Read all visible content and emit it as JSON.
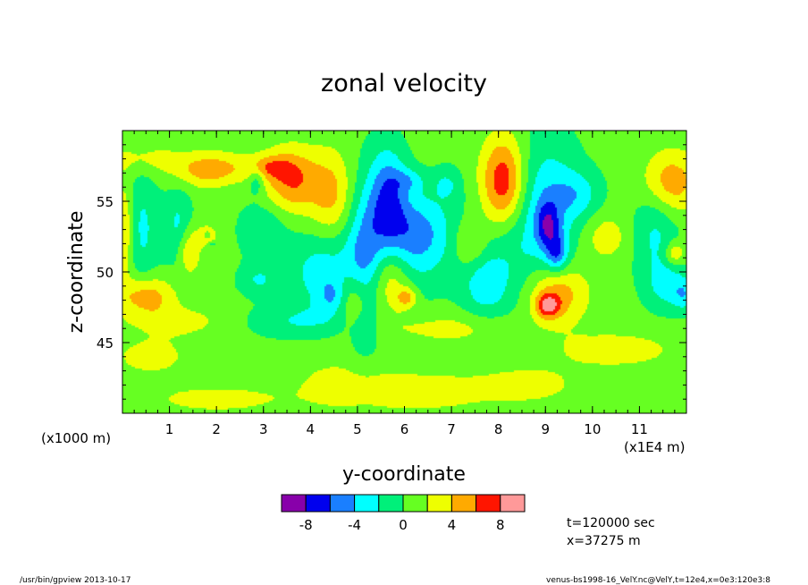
{
  "chart_data": {
    "type": "heatmap",
    "title": "zonal velocity",
    "xlabel": "y-coordinate",
    "ylabel": "z-coordinate",
    "x_ticks": [
      "1",
      "2",
      "3",
      "4",
      "5",
      "6",
      "7",
      "8",
      "9",
      "10",
      "11"
    ],
    "x_tick_values": [
      1,
      2,
      3,
      4,
      5,
      6,
      7,
      8,
      9,
      10,
      11
    ],
    "xlim": [
      0,
      12
    ],
    "x_unit_left": "(x1000 m)",
    "x_unit_right": "(x1E4 m)",
    "y_ticks": [
      "45",
      "50",
      "55"
    ],
    "y_tick_values": [
      45,
      50,
      55
    ],
    "ylim": [
      40,
      60
    ],
    "colorbar": {
      "tick_labels": [
        "-8",
        "-4",
        "0",
        "4",
        "8"
      ],
      "tick_values": [
        -8,
        -4,
        0,
        4,
        8
      ],
      "levels": [
        -10,
        -8,
        -6,
        -4,
        -2,
        0,
        2,
        4,
        6,
        8,
        10
      ],
      "colors": [
        "#8800aa",
        "#0000ee",
        "#1a7fff",
        "#00ffff",
        "#00f07a",
        "#66ff22",
        "#eeff00",
        "#ffaa00",
        "#ff1500",
        "#ff9999"
      ]
    },
    "background_color": "#33ff66",
    "blobs": [
      {
        "x": 8.1,
        "z": 56.2,
        "sx": 0.35,
        "sz": 2.4,
        "v": 9.2
      },
      {
        "x": 5.65,
        "z": 55.6,
        "sx": 0.28,
        "sz": 2.3,
        "v": -5.6
      },
      {
        "x": 5.95,
        "z": 51.8,
        "sx": 0.7,
        "sz": 2.4,
        "v": -3.4
      },
      {
        "x": 4.25,
        "z": 50.0,
        "sx": 0.5,
        "sz": 2.0,
        "v": -3.6
      },
      {
        "x": 4.5,
        "z": 48.2,
        "sx": 0.22,
        "sz": 0.9,
        "v": -3.5
      },
      {
        "x": 3.6,
        "z": 56.5,
        "sx": 0.42,
        "sz": 1.6,
        "v": 5.6
      },
      {
        "x": 3.1,
        "z": 57.4,
        "sx": 0.35,
        "sz": 0.6,
        "v": 3.5
      },
      {
        "x": 4.45,
        "z": 55.4,
        "sx": 0.32,
        "sz": 2.2,
        "v": 3.8
      },
      {
        "x": 5.15,
        "z": 50.2,
        "sx": 0.28,
        "sz": 4.2,
        "v": -3.8
      },
      {
        "x": 4.9,
        "z": 48.0,
        "sx": 0.28,
        "sz": 1.4,
        "v": 4.2
      },
      {
        "x": 5.7,
        "z": 49.6,
        "sx": 0.3,
        "sz": 1.8,
        "v": 4.4
      },
      {
        "x": 6.25,
        "z": 53.0,
        "sx": 0.55,
        "sz": 1.8,
        "v": -3.2
      },
      {
        "x": 6.05,
        "z": 48.2,
        "sx": 0.15,
        "sz": 0.5,
        "v": 4.0
      },
      {
        "x": 8.2,
        "z": 53.8,
        "sx": 0.5,
        "sz": 3.8,
        "v": -3.4
      },
      {
        "x": 9.1,
        "z": 54.6,
        "sx": 0.45,
        "sz": 3.5,
        "v": -3.6
      },
      {
        "x": 9.05,
        "z": 53.3,
        "sx": 0.18,
        "sz": 1.2,
        "v": -5.2
      },
      {
        "x": 9.25,
        "z": 51.3,
        "sx": 0.16,
        "sz": 0.9,
        "v": -5.0
      },
      {
        "x": 9.7,
        "z": 55.5,
        "sx": 0.35,
        "sz": 1.2,
        "v": -3.0
      },
      {
        "x": 7.7,
        "z": 49.0,
        "sx": 0.35,
        "sz": 1.6,
        "v": -3.1
      },
      {
        "x": 9.25,
        "z": 48.5,
        "sx": 0.45,
        "sz": 1.5,
        "v": 5.0
      },
      {
        "x": 9.05,
        "z": 47.6,
        "sx": 0.18,
        "sz": 0.6,
        "v": 6.0
      },
      {
        "x": 11.65,
        "z": 56.3,
        "sx": 0.42,
        "sz": 1.6,
        "v": 5.2
      },
      {
        "x": 11.35,
        "z": 53.0,
        "sx": 0.35,
        "sz": 2.6,
        "v": -3.1
      },
      {
        "x": 11.6,
        "z": 49.0,
        "sx": 0.3,
        "sz": 1.2,
        "v": -3.0
      },
      {
        "x": 11.95,
        "z": 48.4,
        "sx": 0.16,
        "sz": 0.8,
        "v": -3.2
      },
      {
        "x": 11.75,
        "z": 51.3,
        "sx": 0.15,
        "sz": 0.6,
        "v": 4.0
      },
      {
        "x": 0.5,
        "z": 48.3,
        "sx": 0.42,
        "sz": 1.0,
        "v": 4.8
      },
      {
        "x": 0.05,
        "z": 53.0,
        "sx": 0.14,
        "sz": 2.4,
        "v": 4.2
      },
      {
        "x": 0.4,
        "z": 53.1,
        "sx": 0.28,
        "sz": 3.0,
        "v": -3.0
      },
      {
        "x": 1.2,
        "z": 53.0,
        "sx": 0.2,
        "sz": 2.0,
        "v": -3.2
      },
      {
        "x": 1.4,
        "z": 51.5,
        "sx": 0.18,
        "sz": 1.2,
        "v": 4.0
      },
      {
        "x": 1.75,
        "z": 57.0,
        "sx": 0.5,
        "sz": 0.8,
        "v": 2.6
      },
      {
        "x": 1.8,
        "z": 52.6,
        "sx": 0.15,
        "sz": 0.5,
        "v": 3.0
      },
      {
        "x": 1.8,
        "z": 52.6,
        "sx": 0.06,
        "sz": 0.2,
        "v": -3.0
      },
      {
        "x": 1.9,
        "z": 52.0,
        "sx": 0.05,
        "sz": 0.1,
        "v": -3.0
      },
      {
        "x": 2.85,
        "z": 56.5,
        "sx": 0.12,
        "sz": 0.7,
        "v": -3.0
      },
      {
        "x": 3.0,
        "z": 53.0,
        "sx": 0.35,
        "sz": 1.5,
        "v": -2.5
      },
      {
        "x": 2.9,
        "z": 49.4,
        "sx": 0.3,
        "sz": 0.8,
        "v": -2.6
      },
      {
        "x": 2.0,
        "z": 57.5,
        "sx": 0.5,
        "sz": 0.8,
        "v": 2.5
      },
      {
        "x": 6.1,
        "z": 56.5,
        "sx": 0.25,
        "sz": 0.6,
        "v": -2.6
      },
      {
        "x": 6.9,
        "z": 56.2,
        "sx": 0.2,
        "sz": 0.8,
        "v": -2.5
      },
      {
        "x": 7.4,
        "z": 52.0,
        "sx": 0.25,
        "sz": 1.2,
        "v": 3.0
      },
      {
        "x": 3.7,
        "z": 46.5,
        "sx": 0.8,
        "sz": 0.8,
        "v": -2.4
      },
      {
        "x": 6.5,
        "z": 41.5,
        "sx": 0.9,
        "sz": 1.0,
        "v": 2.4
      },
      {
        "x": 2.0,
        "z": 41.0,
        "sx": 1.0,
        "sz": 0.7,
        "v": 2.3
      },
      {
        "x": 10.5,
        "z": 44.5,
        "sx": 1.0,
        "sz": 1.0,
        "v": 2.3
      },
      {
        "x": 10.3,
        "z": 52.5,
        "sx": 0.35,
        "sz": 1.2,
        "v": 2.5
      },
      {
        "x": 4.7,
        "z": 42.0,
        "sx": 0.8,
        "sz": 1.4,
        "v": 2.2
      },
      {
        "x": 8.6,
        "z": 42.0,
        "sx": 0.8,
        "sz": 1.0,
        "v": 2.2
      },
      {
        "x": 0.6,
        "z": 44.0,
        "sx": 0.6,
        "sz": 1.0,
        "v": 2.2
      },
      {
        "x": 7.0,
        "z": 46.0,
        "sx": 1.0,
        "sz": 0.8,
        "v": 2.1
      },
      {
        "x": 1.2,
        "z": 46.5,
        "sx": 0.8,
        "sz": 0.8,
        "v": 2.1
      },
      {
        "x": 0.5,
        "z": 58.0,
        "sx": 0.6,
        "sz": 0.8,
        "v": 2.2
      }
    ]
  },
  "info": {
    "time": "t=120000 sec",
    "x_position": "x=37275 m"
  },
  "footer": {
    "left": "/usr/bin/gpview  2013-10-17",
    "right": "venus-bs1998-16_VelY.nc@VelY,t=12e4,x=0e3:120e3:8"
  }
}
